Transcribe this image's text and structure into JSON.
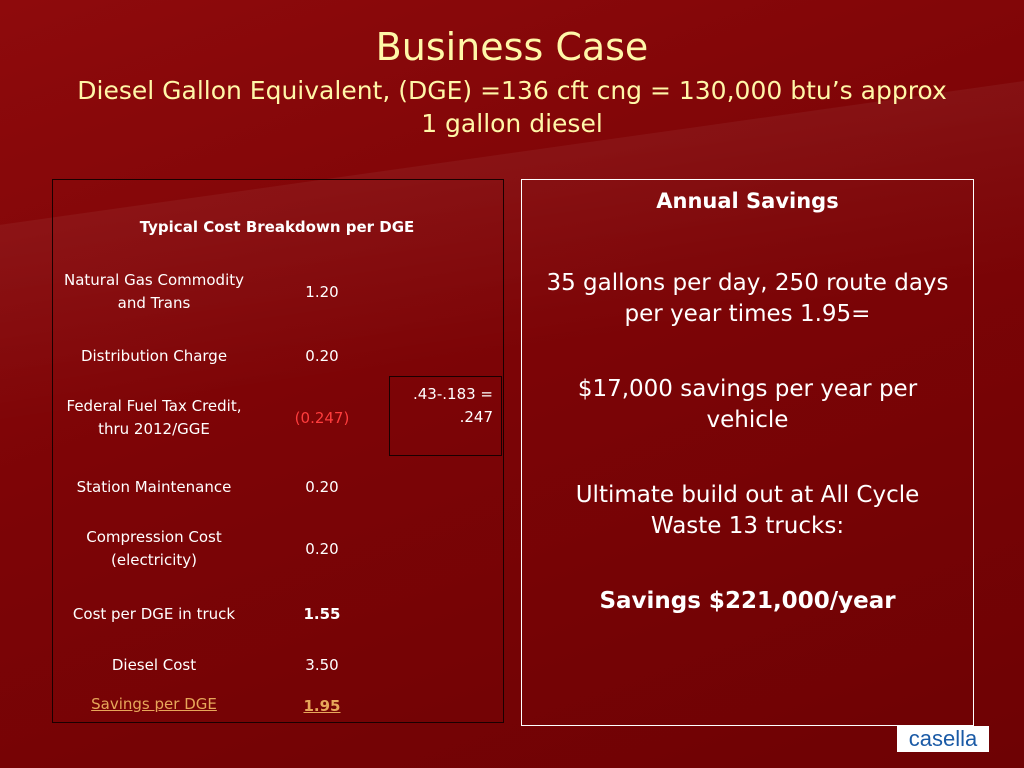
{
  "slide": {
    "title": "Business Case",
    "subtitle_line1": "Diesel Gallon Equivalent, (DGE) =136 cft cng = 130,000 btu’s approx",
    "subtitle_line2": "1 gallon diesel"
  },
  "cost_table": {
    "heading": "Typical Cost Breakdown per DGE",
    "rows": [
      {
        "label": "Natural Gas Commodity and Trans",
        "value": "1.20"
      },
      {
        "label": "Distribution Charge",
        "value": "0.20"
      },
      {
        "label": "Federal Fuel Tax Credit, thru 2012/GGE",
        "value": "(0.247)"
      },
      {
        "label": "Station Maintenance",
        "value": "0.20"
      },
      {
        "label": "Compression Cost (electricity)",
        "value": "0.20"
      },
      {
        "label": "Cost per DGE in truck",
        "value": "1.55"
      },
      {
        "label": "Diesel Cost",
        "value": "3.50"
      },
      {
        "label": "Savings per DGE",
        "value": "1.95"
      }
    ],
    "tax_note": ".43-.183 = .247",
    "colors": {
      "credit_value": "#ff3d3d",
      "savings_link": "#e7a75a"
    }
  },
  "annual_savings": {
    "heading": "Annual Savings",
    "line1": "35 gallons per day, 250 route days per year times 1.95=",
    "line2": "$17,000 savings per year per vehicle",
    "line3": "Ultimate build out at All Cycle Waste 13 trucks:",
    "line4": "Savings $221,000/year"
  },
  "logo": {
    "text": "casella",
    "color": "#1a5aa6"
  },
  "theme": {
    "background": "#7d0406",
    "title_color": "#fff7a8"
  }
}
